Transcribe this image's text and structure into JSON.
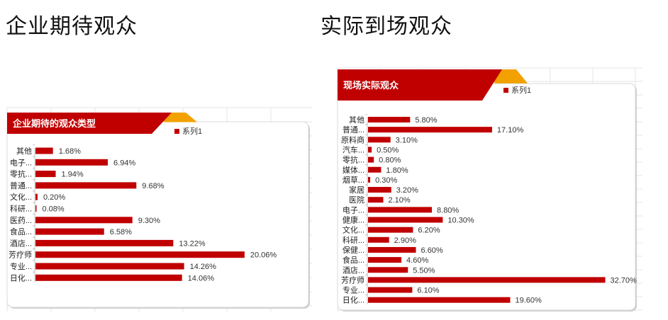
{
  "titles": {
    "left": "企业期待观众",
    "right": "实际到场观众"
  },
  "colors": {
    "bar": "#C00000",
    "header": "#C00000",
    "accent": "#F2A100"
  },
  "chart_data": [
    {
      "type": "bar",
      "orientation": "horizontal",
      "title": "企业期待的观众类型",
      "legend": "系列1",
      "legend_position": "top-right",
      "unit": "%",
      "categories": [
        "其他",
        "电子...",
        "零抗...",
        "普通...",
        "文化...",
        "科研...",
        "医药...",
        "食品...",
        "酒店...",
        "芳疗师",
        "专业...",
        "日化..."
      ],
      "values": [
        1.68,
        6.94,
        1.94,
        9.68,
        0.2,
        0.08,
        9.3,
        6.58,
        13.22,
        20.06,
        14.26,
        14.06
      ],
      "labels": [
        "1.68%",
        "6.94%",
        "1.94%",
        "9.68%",
        "0.20%",
        "0.08%",
        "9.30%",
        "6.58%",
        "13.22%",
        "20.06%",
        "14.26%",
        "14.06%"
      ]
    },
    {
      "type": "bar",
      "orientation": "horizontal",
      "title": "现场实际观众",
      "legend": "系列1",
      "legend_position": "top-right",
      "unit": "%",
      "categories": [
        "其他",
        "普通...",
        "原料商",
        "汽车...",
        "零抗...",
        "媒体...",
        "烟草...",
        "家居",
        "医院",
        "电子...",
        "健康...",
        "文化...",
        "科研...",
        "保健...",
        "食品...",
        "酒店...",
        "芳疗师",
        "专业...",
        "日化..."
      ],
      "values": [
        5.8,
        17.1,
        3.1,
        0.5,
        0.8,
        1.8,
        0.3,
        3.2,
        2.1,
        8.8,
        10.3,
        6.2,
        2.9,
        6.6,
        4.6,
        5.5,
        32.7,
        6.1,
        19.6
      ],
      "labels": [
        "5.80%",
        "17.10%",
        "3.10%",
        "0.50%",
        "0.80%",
        "1.80%",
        "0.30%",
        "3.20%",
        "2.10%",
        "8.80%",
        "10.30%",
        "6.20%",
        "2.90%",
        "6.60%",
        "4.60%",
        "5.50%",
        "32.70%",
        "6.10%",
        "19.60%"
      ]
    }
  ]
}
